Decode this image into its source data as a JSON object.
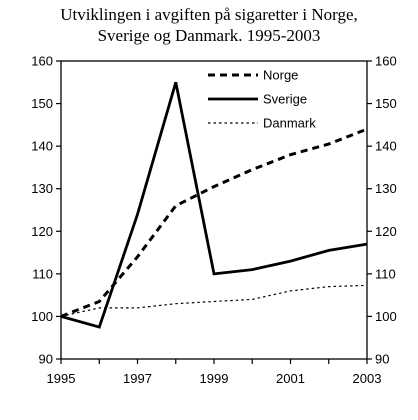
{
  "chart_data": {
    "type": "line",
    "title_lines": [
      "Utviklingen i avgiften på sigaretter i Norge,",
      "Sverige og Danmark. 1995-2003"
    ],
    "x": [
      1995,
      1996,
      1997,
      1998,
      1999,
      2000,
      2001,
      2002,
      2003
    ],
    "xticks": [
      "1995",
      "1997",
      "1999",
      "2001",
      "2003"
    ],
    "yticks": [
      "90",
      "100",
      "110",
      "120",
      "130",
      "140",
      "150",
      "160"
    ],
    "ylim": [
      90,
      160
    ],
    "xlim": [
      1995,
      2003
    ],
    "legend_placement": "top-right",
    "series": [
      {
        "name": "Norge",
        "style": "dashed-bold",
        "color": "#000000",
        "values": [
          100,
          103.5,
          114,
          126,
          130.5,
          134.5,
          138,
          140.5,
          144
        ]
      },
      {
        "name": "Sverige",
        "style": "solid-bold",
        "color": "#000000",
        "values": [
          100,
          97.5,
          124,
          155,
          110,
          111,
          113,
          115.5,
          117
        ]
      },
      {
        "name": "Danmark",
        "style": "dotted-thin",
        "color": "#000000",
        "values": [
          100,
          102,
          102,
          103,
          103.5,
          104,
          106,
          107,
          107.3
        ]
      }
    ]
  }
}
